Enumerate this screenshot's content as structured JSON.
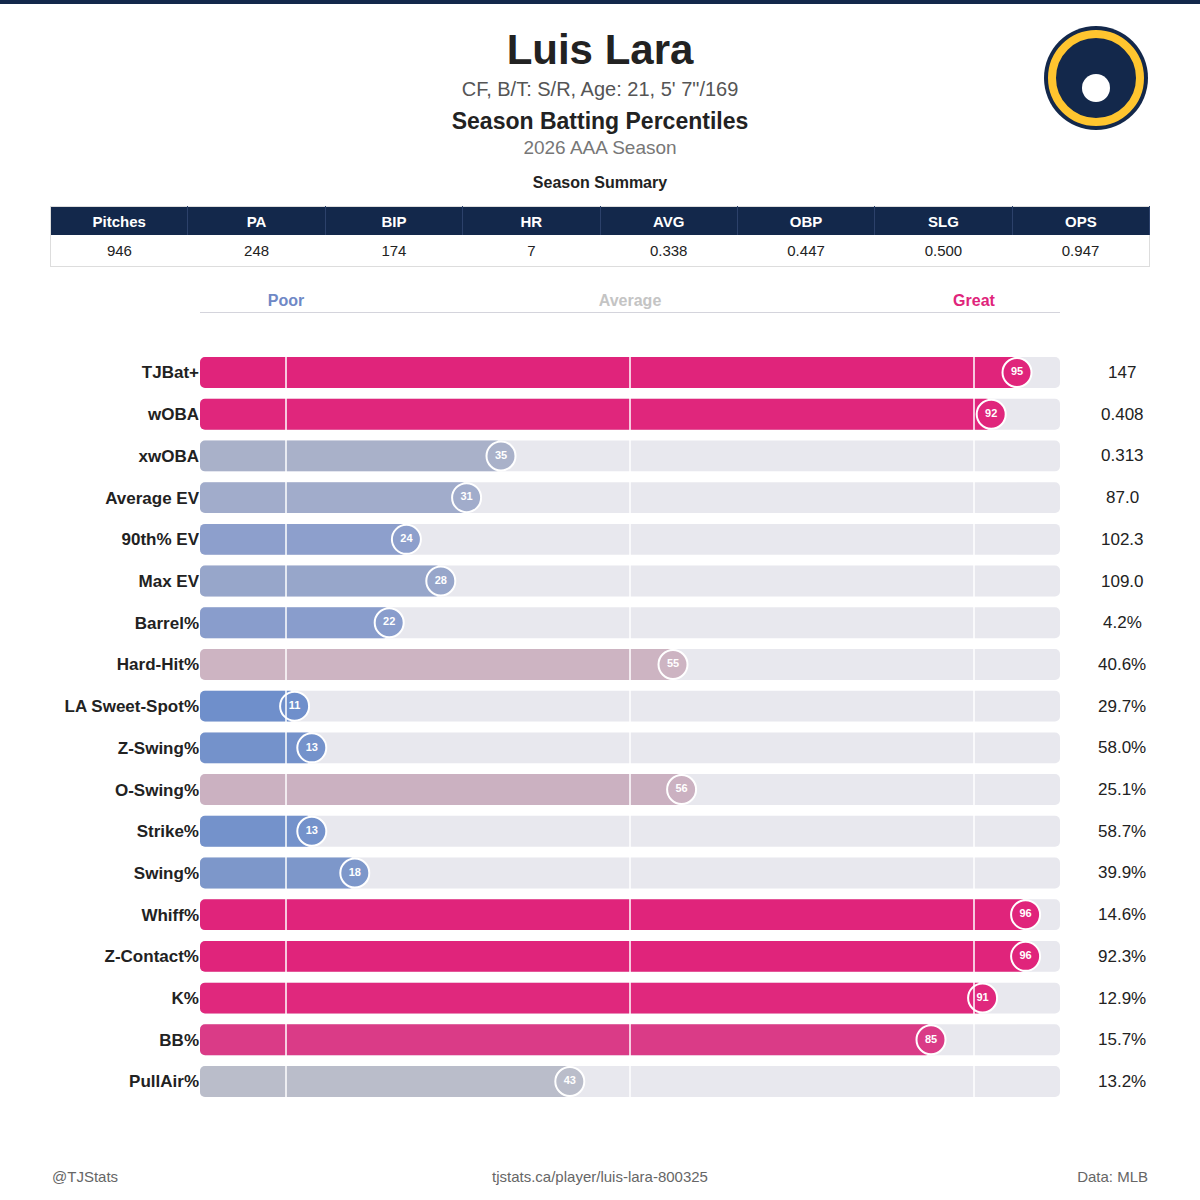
{
  "header": {
    "name": "Luis Lara",
    "subtitle": "CF, B/T: S/R, Age: 21, 5' 7\"/169",
    "title": "Season Batting Percentiles",
    "season": "2026 AAA Season"
  },
  "summary": {
    "title": "Season Summary",
    "columns": [
      "Pitches",
      "PA",
      "BIP",
      "HR",
      "AVG",
      "OBP",
      "SLG",
      "OPS"
    ],
    "values": [
      "946",
      "248",
      "174",
      "7",
      "0.338",
      "0.447",
      "0.500",
      "0.947"
    ]
  },
  "chart_data": {
    "type": "bar",
    "orientation": "horizontal",
    "data_labels": true,
    "grid": true,
    "categories": [
      "TJBat+",
      "wOBA",
      "xwOBA",
      "Average EV",
      "90th% EV",
      "Max EV",
      "Barrel%",
      "Hard-Hit%",
      "LA Sweet-Spot%",
      "Z-Swing%",
      "O-Swing%",
      "Strike%",
      "Swing%",
      "Whiff%",
      "Z-Contact%",
      "K%",
      "BB%",
      "PullAir%"
    ],
    "values": [
      95,
      92,
      35,
      31,
      24,
      28,
      22,
      55,
      11,
      13,
      56,
      13,
      18,
      96,
      96,
      91,
      85,
      43
    ],
    "colors": [
      "#e0247b",
      "#e0267c",
      "#a9b1c9",
      "#a1accb",
      "#8d9fcc",
      "#97a6ca",
      "#899dcc",
      "#cdb4c2",
      "#6f8fcb",
      "#7492cb",
      "#cbb1c1",
      "#7492cb",
      "#7d97ca",
      "#e0247b",
      "#e0247b",
      "#e0287d",
      "#da3b87",
      "#babdca"
    ],
    "stat_values": [
      "147",
      "0.408",
      "0.313",
      "87.0",
      "102.3",
      "109.0",
      "4.2%",
      "40.6%",
      "29.7%",
      "58.0%",
      "25.1%",
      "58.7%",
      "39.9%",
      "14.6%",
      "92.3%",
      "12.9%",
      "15.7%",
      "13.2%"
    ],
    "xlim": [
      0,
      100
    ],
    "xticks": [
      {
        "value": 10,
        "label": "Poor"
      },
      {
        "value": 50,
        "label": "Average"
      },
      {
        "value": 90,
        "label": "Great"
      }
    ]
  },
  "footer": {
    "left": "@TJStats",
    "center": "tjstats.ca/player/luis-lara-800325",
    "right": "Data: MLB"
  }
}
